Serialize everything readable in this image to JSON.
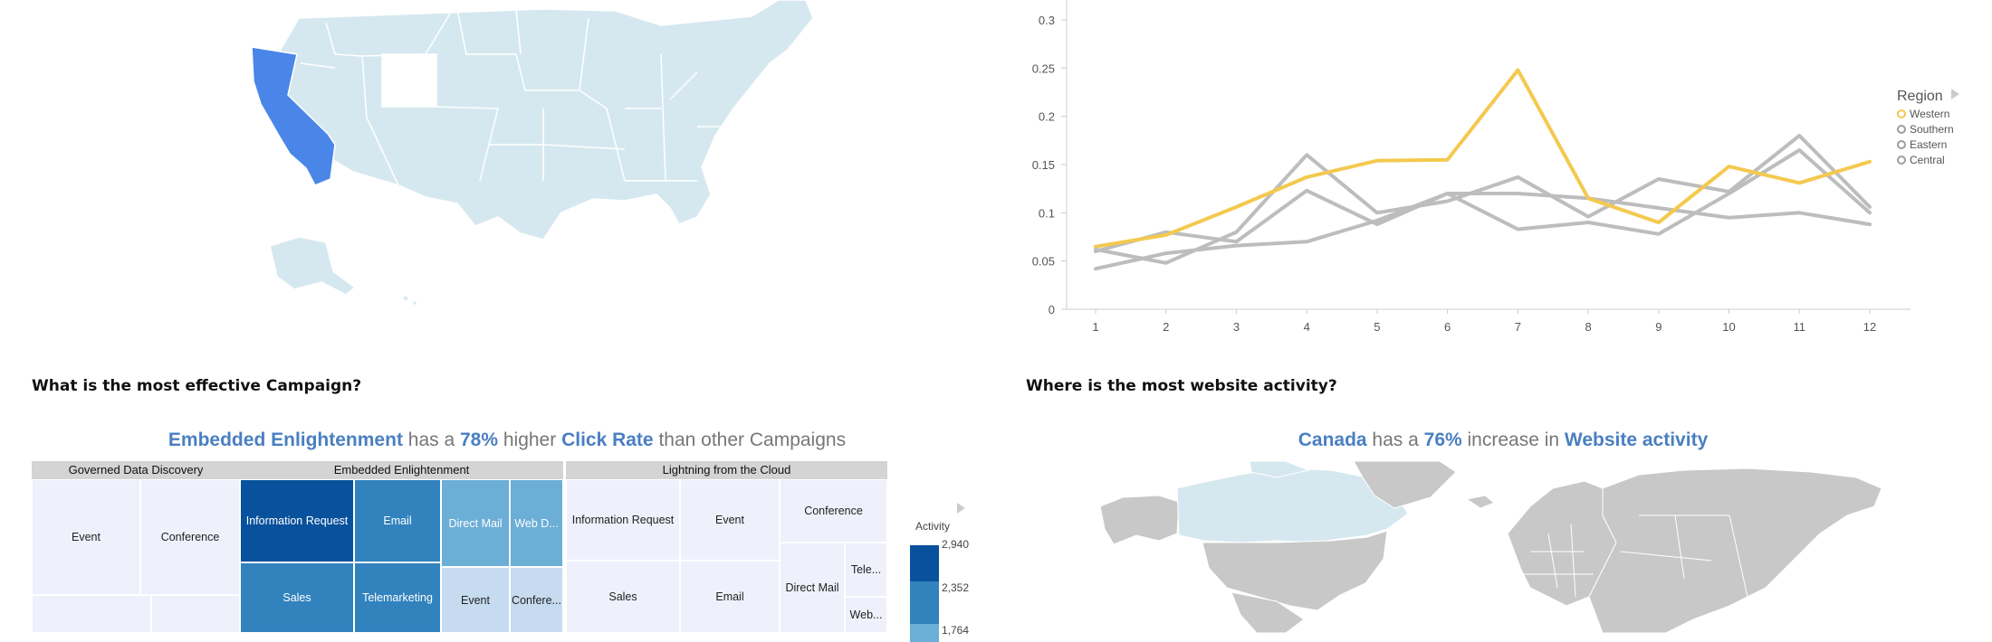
{
  "colors": {
    "map_base": "#d6e8ef",
    "california": "#4a86e8",
    "wyoming": "#ffffff",
    "western": "#f3c94f",
    "other_region": "#bdbdbd",
    "accent": "#4a7fc1",
    "world_land": "#c8c8c8",
    "world_canada": "#d6e8ef"
  },
  "sections": {
    "campaign_title": "What is the most effective Campaign?",
    "website_title": "Where is the most website activity?"
  },
  "campaign_headline": {
    "part1": "Embedded Enlightenment",
    "part2": " has a ",
    "part3": "78%",
    "part4": " higher ",
    "part5": "Click Rate",
    "part6": " than other Campaigns"
  },
  "website_headline": {
    "part1": "Canada",
    "part2": " has a ",
    "part3": "76%",
    "part4": " increase in ",
    "part5": "Website activity"
  },
  "treemap": {
    "groups": [
      {
        "label": "Governed Data Discovery"
      },
      {
        "label": "Embedded Enlightenment"
      },
      {
        "label": "Lightning from the Cloud"
      }
    ],
    "tiles": {
      "g1_event": "Event",
      "g1_conference": "Conference",
      "g2_info": "Information Request",
      "g2_email": "Email",
      "g2_direct": "Direct Mail",
      "g2_web": "Web D...",
      "g2_sales": "Sales",
      "g2_tele": "Telemarketing",
      "g2_event": "Event",
      "g2_confer": "Confere...",
      "g3_info": "Information Request",
      "g3_event": "Event",
      "g3_conference": "Conference",
      "g3_sales": "Sales",
      "g3_email": "Email",
      "g3_direct": "Direct Mail",
      "g3_tele": "Tele...",
      "g3_web": "Web..."
    },
    "legend": {
      "title": "Activity",
      "values": [
        "2,940",
        "2,352",
        "1,764"
      ]
    }
  },
  "chart_data": {
    "type": "line",
    "x": [
      1,
      2,
      3,
      4,
      5,
      6,
      7,
      8,
      9,
      10,
      11,
      12
    ],
    "ylim": [
      0,
      0.33
    ],
    "yticks": [
      "0",
      "0.05",
      "0.1",
      "0.15",
      "0.2",
      "0.25",
      "0.3"
    ],
    "ytick_values": [
      0,
      0.05,
      0.1,
      0.15,
      0.2,
      0.25,
      0.3
    ],
    "xticks": [
      "1",
      "2",
      "3",
      "4",
      "5",
      "6",
      "7",
      "8",
      "9",
      "10",
      "11",
      "12"
    ],
    "legend_title": "Region",
    "legend_placement": "right",
    "series": [
      {
        "name": "Southern",
        "color": "#bdbdbd",
        "values": [
          0.062,
          0.048,
          0.08,
          0.16,
          0.1,
          0.112,
          0.137,
          0.096,
          0.135,
          0.122,
          0.18,
          0.106
        ]
      },
      {
        "name": "Eastern",
        "color": "#bdbdbd",
        "values": [
          0.06,
          0.08,
          0.07,
          0.123,
          0.088,
          0.12,
          0.083,
          0.09,
          0.078,
          0.12,
          0.165,
          0.1
        ]
      },
      {
        "name": "Central",
        "color": "#bdbdbd",
        "values": [
          0.042,
          0.058,
          0.066,
          0.07,
          0.092,
          0.12,
          0.12,
          0.115,
          0.105,
          0.095,
          0.1,
          0.088
        ]
      },
      {
        "name": "Western",
        "color": "#f3c94f",
        "values": [
          0.065,
          0.077,
          0.106,
          0.137,
          0.154,
          0.155,
          0.248,
          0.115,
          0.09,
          0.148,
          0.131,
          0.153
        ]
      }
    ]
  }
}
